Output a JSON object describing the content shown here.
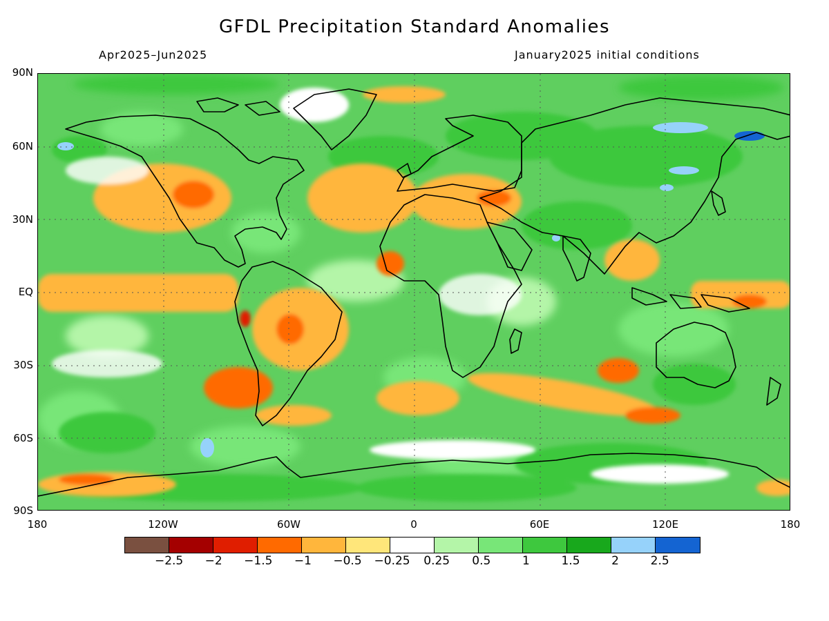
{
  "title": "GFDL Precipitation Standard Anomalies",
  "period_label": "Apr2025–Jun2025",
  "conditions_label": "January2025 initial conditions",
  "map": {
    "projection": "equirectangular",
    "lat_labels": [
      "90N",
      "60N",
      "30N",
      "EQ",
      "30S",
      "60S",
      "90S"
    ],
    "lon_labels": [
      "180",
      "120W",
      "60W",
      "0",
      "60E",
      "120E",
      "180"
    ],
    "gridlines": "dotted",
    "background_color": "#5fcf5f"
  },
  "colorbar": {
    "colors": [
      "#7a5040",
      "#a40000",
      "#e01e00",
      "#ff6a00",
      "#ffb63c",
      "#ffe67a",
      "#ffffff",
      "#b4f5a8",
      "#78e678",
      "#3ec83e",
      "#18a81c",
      "#96d2fa",
      "#1464d2"
    ],
    "labels": [
      "−2.5",
      "−2",
      "−1.5",
      "−1",
      "−0.5",
      "−0.25",
      "0.25",
      "0.5",
      "1",
      "1.5",
      "2",
      "2.5"
    ]
  },
  "anomaly_regions": [
    {
      "name": "Equatorial Pacific band",
      "level": -0.5,
      "color": "#ffb63c"
    },
    {
      "name": "South America (Brazil)",
      "level": -1,
      "color": "#ff6a00"
    },
    {
      "name": "Southeast Pacific off Chile",
      "level": -1,
      "color": "#ff6a00"
    },
    {
      "name": "Southern Indian Ocean storm track",
      "level": -1,
      "color": "#ff6a00"
    },
    {
      "name": "North Pacific / western US",
      "level": -1,
      "color": "#ff6a00"
    },
    {
      "name": "West Africa",
      "level": -1,
      "color": "#ff6a00"
    },
    {
      "name": "Eurasia / Siberia",
      "level": 1,
      "color": "#3ec83e"
    },
    {
      "name": "Siberian wet spots",
      "level": 2.5,
      "color": "#96d2fa"
    },
    {
      "name": "Antarctic coast",
      "level": 1,
      "color": "#3ec83e"
    },
    {
      "name": "Australia",
      "level": 0.5,
      "color": "#78e678"
    }
  ]
}
